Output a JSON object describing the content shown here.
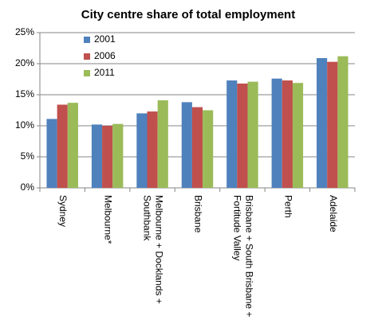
{
  "chart_data": {
    "type": "bar",
    "title": "City centre share of total employment",
    "categories": [
      "Sydney",
      "Melbourne*",
      "Melbourne + Docklands + Southbank",
      "Brisbane",
      "Brisbane + South Brisbane + Fortitude Valley",
      "Perth",
      "Adelaide"
    ],
    "series": [
      {
        "name": "2001",
        "color": "#4f81bd",
        "values": [
          11.1,
          10.2,
          12.0,
          13.8,
          17.3,
          17.6,
          20.9
        ]
      },
      {
        "name": "2006",
        "color": "#c0504d",
        "values": [
          13.4,
          10.0,
          12.3,
          13.0,
          16.8,
          17.3,
          20.3
        ]
      },
      {
        "name": "2011",
        "color": "#9bbb59",
        "values": [
          13.7,
          10.3,
          14.1,
          12.5,
          17.1,
          16.9,
          21.2
        ]
      }
    ],
    "ylim": [
      0,
      25
    ],
    "yticks": [
      {
        "value": 0,
        "label": "0%"
      },
      {
        "value": 5,
        "label": "5%"
      },
      {
        "value": 10,
        "label": "10%"
      },
      {
        "value": 15,
        "label": "15%"
      },
      {
        "value": 20,
        "label": "20%"
      },
      {
        "value": 25,
        "label": "25%"
      }
    ],
    "grid": true,
    "legend": "top-left"
  }
}
